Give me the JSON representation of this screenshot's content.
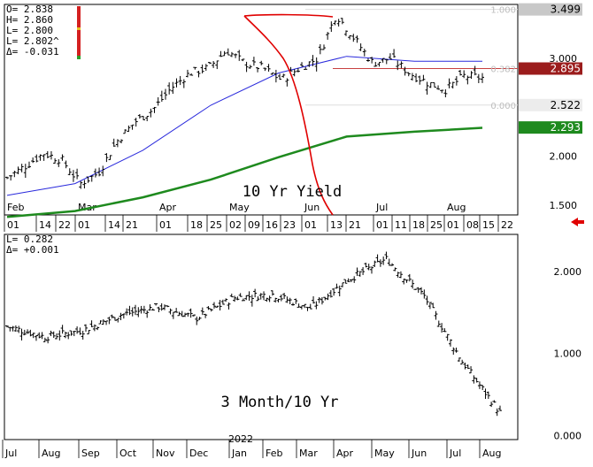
{
  "ohlc_readout": {
    "open": "O=  2.838",
    "high": "H=  2.860",
    "low": "L=  2.800",
    "last": "L=  2.802^",
    "delta": "Δ= -0.031"
  },
  "spread_readout": {
    "last": "L=   0.282",
    "delta": "Δ=  +0.001"
  },
  "colors": {
    "price": "#000000",
    "ma_short": "#2a2adc",
    "ma_long": "#1e8a1e",
    "annotation": "#e00000",
    "fib_line": "#c84040",
    "badge_dark_red": "#9b1c1c",
    "badge_green": "#1e8a1e",
    "badge_gray": "#c8c8c8"
  },
  "chart_data": [
    {
      "type": "bar",
      "title": "10 Yr Yield",
      "ylim": [
        1.4,
        3.55
      ],
      "x_axis_months": [
        "Feb",
        "Mar",
        "Apr",
        "May",
        "Jun",
        "Jul",
        "Aug"
      ],
      "x_axis_days": [
        "01",
        "14",
        "22",
        "01",
        "14",
        "21",
        "01",
        "18",
        "25",
        "02",
        "09",
        "16",
        "23",
        "01",
        "13",
        "21",
        "01",
        "11",
        "18",
        "25",
        "01",
        "08",
        "15",
        "22"
      ],
      "y_ticks": [
        "1.500",
        "2.000",
        "2.500",
        "3.000"
      ],
      "price_badges": [
        {
          "value": "3.499",
          "style": "gray"
        },
        {
          "value": "2.895",
          "style": "dark-red"
        },
        {
          "value": "2.522",
          "style": "light"
        },
        {
          "value": "2.293",
          "style": "green"
        }
      ],
      "fib_labels": [
        "1.000",
        "0.382",
        "0.000"
      ],
      "fib_levels": [
        3.499,
        2.895,
        2.522
      ],
      "series": [
        {
          "kind": "ohlc",
          "x": [
            "Feb 01",
            "Feb 08",
            "Feb 14",
            "Feb 22",
            "Mar 01",
            "Mar 08",
            "Mar 14",
            "Mar 21",
            "Apr 01",
            "Apr 08",
            "Apr 18",
            "Apr 25",
            "May 02",
            "May 09",
            "May 16",
            "May 23",
            "Jun 01",
            "Jun 08",
            "Jun 13",
            "Jun 21",
            "Jul 01",
            "Jul 11",
            "Jul 18",
            "Jul 25",
            "Aug 01",
            "Aug 08",
            "Aug 12"
          ],
          "values": [
            1.78,
            1.9,
            2.03,
            1.96,
            1.72,
            1.83,
            2.15,
            2.35,
            2.48,
            2.7,
            2.85,
            2.9,
            3.08,
            2.95,
            2.9,
            2.78,
            2.9,
            3.0,
            3.45,
            3.2,
            2.95,
            3.0,
            2.85,
            2.75,
            2.68,
            2.82,
            2.8
          ]
        },
        {
          "name": "short-ma",
          "kind": "line",
          "x": [
            "Feb 01",
            "Mar 01",
            "Apr 01",
            "May 02",
            "Jun 01",
            "Jul 01",
            "Aug 01",
            "Aug 12"
          ],
          "values": [
            1.6,
            1.72,
            2.06,
            2.52,
            2.85,
            3.02,
            2.97,
            2.97
          ]
        },
        {
          "name": "long-ma",
          "kind": "line",
          "x": [
            "Feb 01",
            "Mar 01",
            "Apr 01",
            "May 02",
            "Jun 01",
            "Jul 01",
            "Aug 01",
            "Aug 12"
          ],
          "values": [
            1.38,
            1.44,
            1.58,
            1.76,
            1.99,
            2.2,
            2.25,
            2.29
          ]
        }
      ]
    },
    {
      "type": "bar",
      "title": "3 Month/10 Yr",
      "ylim": [
        -0.05,
        2.45
      ],
      "x_axis_months": [
        "Jul",
        "Aug",
        "Sep",
        "Oct",
        "Nov",
        "Dec",
        "Jan",
        "Feb",
        "Mar",
        "Apr",
        "May",
        "Jun",
        "Jul",
        "Aug"
      ],
      "year_label": "2022",
      "y_ticks": [
        "0.000",
        "1.000",
        "2.000"
      ],
      "series": [
        {
          "kind": "ohlc",
          "x": [
            "Jul 21",
            "Aug 21",
            "Sep 21",
            "Oct 21",
            "Nov 21",
            "Dec 21",
            "Jan 22",
            "Feb 22",
            "Mar 22",
            "Apr 22",
            "May 22",
            "Jun 22",
            "Jul 22",
            "Aug 22"
          ],
          "values": [
            1.33,
            1.2,
            1.28,
            1.47,
            1.57,
            1.43,
            1.68,
            1.72,
            1.55,
            1.9,
            2.15,
            1.7,
            0.9,
            0.28
          ]
        }
      ]
    }
  ]
}
